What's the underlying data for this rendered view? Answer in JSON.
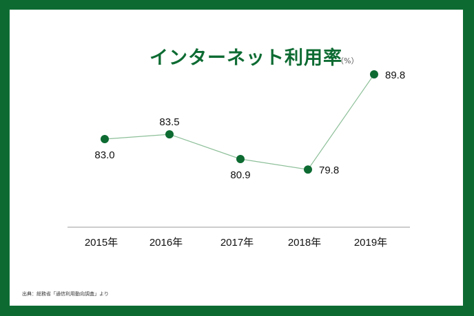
{
  "title": "インターネット利用率",
  "unit": "（%）",
  "source": "出典：総務省「通信利用動向調査」より",
  "colors": {
    "border": "#0d6b32",
    "point": "#0d6b32",
    "line": "#8cbf98",
    "axis": "#999999"
  },
  "chart_data": {
    "type": "line",
    "title": "インターネット利用率",
    "unit": "%",
    "categories": [
      "2015年",
      "2016年",
      "2017年",
      "2018年",
      "2019年"
    ],
    "series": [
      {
        "name": "インターネット利用率",
        "values": [
          83.0,
          83.5,
          80.9,
          79.8,
          89.8
        ]
      }
    ],
    "data_labels": [
      "83.0",
      "83.5",
      "80.9",
      "79.8",
      "89.8"
    ],
    "xlabel": "",
    "ylabel": "",
    "grid": false,
    "legend": "none",
    "source": "出典：総務省「通信利用動向調査」より"
  }
}
